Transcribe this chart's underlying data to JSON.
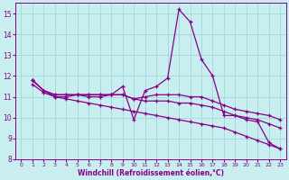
{
  "xlabel": "Windchill (Refroidissement éolien,°C)",
  "xlim": [
    -0.5,
    23.5
  ],
  "ylim": [
    8,
    15.5
  ],
  "yticks": [
    8,
    9,
    10,
    11,
    12,
    13,
    14,
    15
  ],
  "xticks": [
    0,
    1,
    2,
    3,
    4,
    5,
    6,
    7,
    8,
    9,
    10,
    11,
    12,
    13,
    14,
    15,
    16,
    17,
    18,
    19,
    20,
    21,
    22,
    23
  ],
  "background_color": "#c8eef0",
  "grid_color": "#a0d8dc",
  "line_color": "#880088",
  "series": [
    [
      11.8,
      11.3,
      11.0,
      11.0,
      11.1,
      11.0,
      11.0,
      11.1,
      11.5,
      9.9,
      11.3,
      11.5,
      11.9,
      15.2,
      14.6,
      12.8,
      12.0,
      10.1,
      10.1,
      9.9,
      9.8,
      8.8,
      8.5
    ],
    [
      11.8,
      11.3,
      11.1,
      11.1,
      11.1,
      11.1,
      11.1,
      11.1,
      11.1,
      10.9,
      11.0,
      11.1,
      11.1,
      11.1,
      11.0,
      11.0,
      10.8,
      10.6,
      10.4,
      10.3,
      10.2,
      10.1,
      9.9
    ],
    [
      11.8,
      11.3,
      11.1,
      11.1,
      11.1,
      11.1,
      11.1,
      11.1,
      11.1,
      10.9,
      10.8,
      10.8,
      10.8,
      10.7,
      10.7,
      10.6,
      10.5,
      10.3,
      10.1,
      10.0,
      9.9,
      9.7,
      9.5
    ],
    [
      11.6,
      11.2,
      11.0,
      10.9,
      10.8,
      10.7,
      10.6,
      10.5,
      10.4,
      10.3,
      10.2,
      10.1,
      10.0,
      9.9,
      9.8,
      9.7,
      9.6,
      9.5,
      9.3,
      9.1,
      8.9,
      8.7,
      8.5
    ]
  ],
  "x_vals": [
    1,
    2,
    3,
    4,
    5,
    6,
    7,
    8,
    9,
    10,
    11,
    12,
    13,
    14,
    15,
    16,
    17,
    18,
    19,
    20,
    21,
    22,
    23
  ]
}
